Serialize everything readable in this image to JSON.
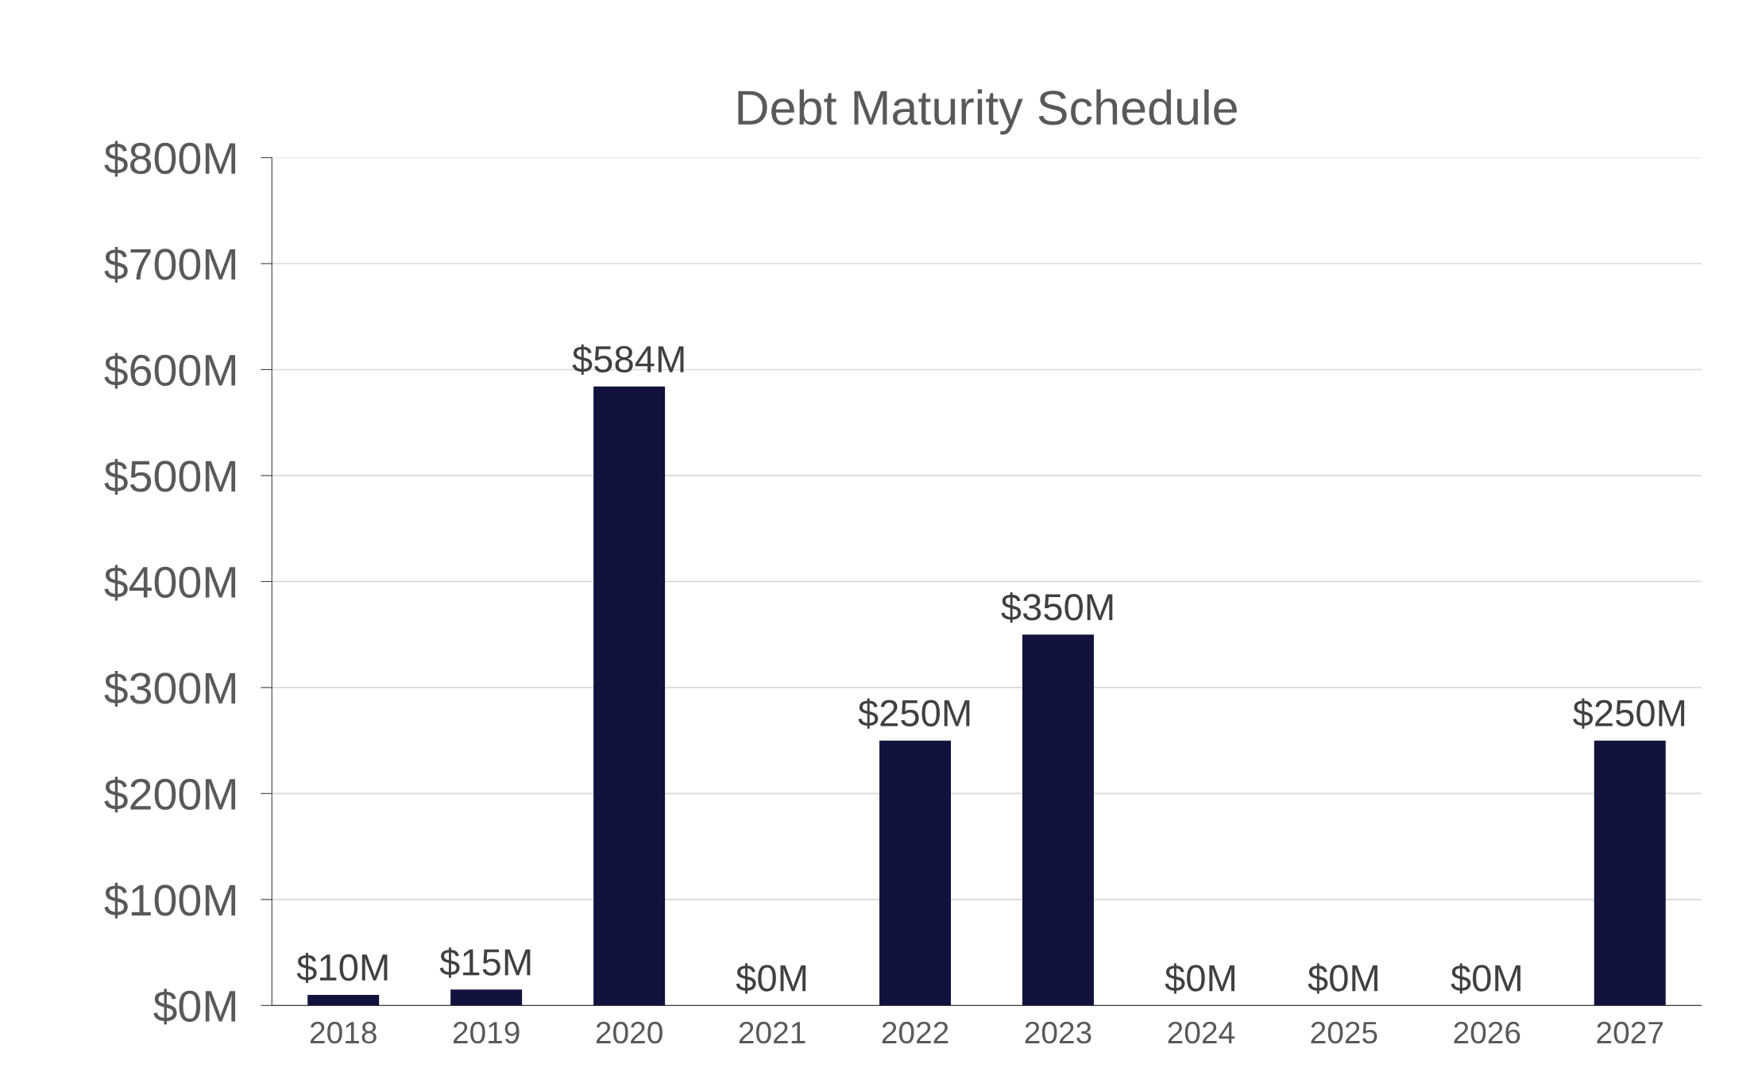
{
  "chart_data": {
    "type": "bar",
    "title": "Debt Maturity Schedule",
    "categories": [
      "2018",
      "2019",
      "2020",
      "2021",
      "2022",
      "2023",
      "2024",
      "2025",
      "2026",
      "2027"
    ],
    "values": [
      10,
      15,
      584,
      0,
      250,
      350,
      0,
      0,
      0,
      250
    ],
    "value_labels": [
      "$10M",
      "$15M",
      "$584M",
      "$0M",
      "$250M",
      "$350M",
      "$0M",
      "$0M",
      "$0M",
      "$250M"
    ],
    "color": "#11123d",
    "ylim": [
      0,
      800
    ],
    "yticks": [
      {
        "value": 0,
        "label": "$0M"
      },
      {
        "value": 100,
        "label": "$100M"
      },
      {
        "value": 200,
        "label": "$200M"
      },
      {
        "value": 300,
        "label": "$300M"
      },
      {
        "value": 400,
        "label": "$400M"
      },
      {
        "value": 500,
        "label": "$500M"
      },
      {
        "value": 600,
        "label": "$600M"
      },
      {
        "value": 700,
        "label": "$700M"
      },
      {
        "value": 800,
        "label": "$800M"
      }
    ],
    "grid": "y",
    "legend": false
  }
}
